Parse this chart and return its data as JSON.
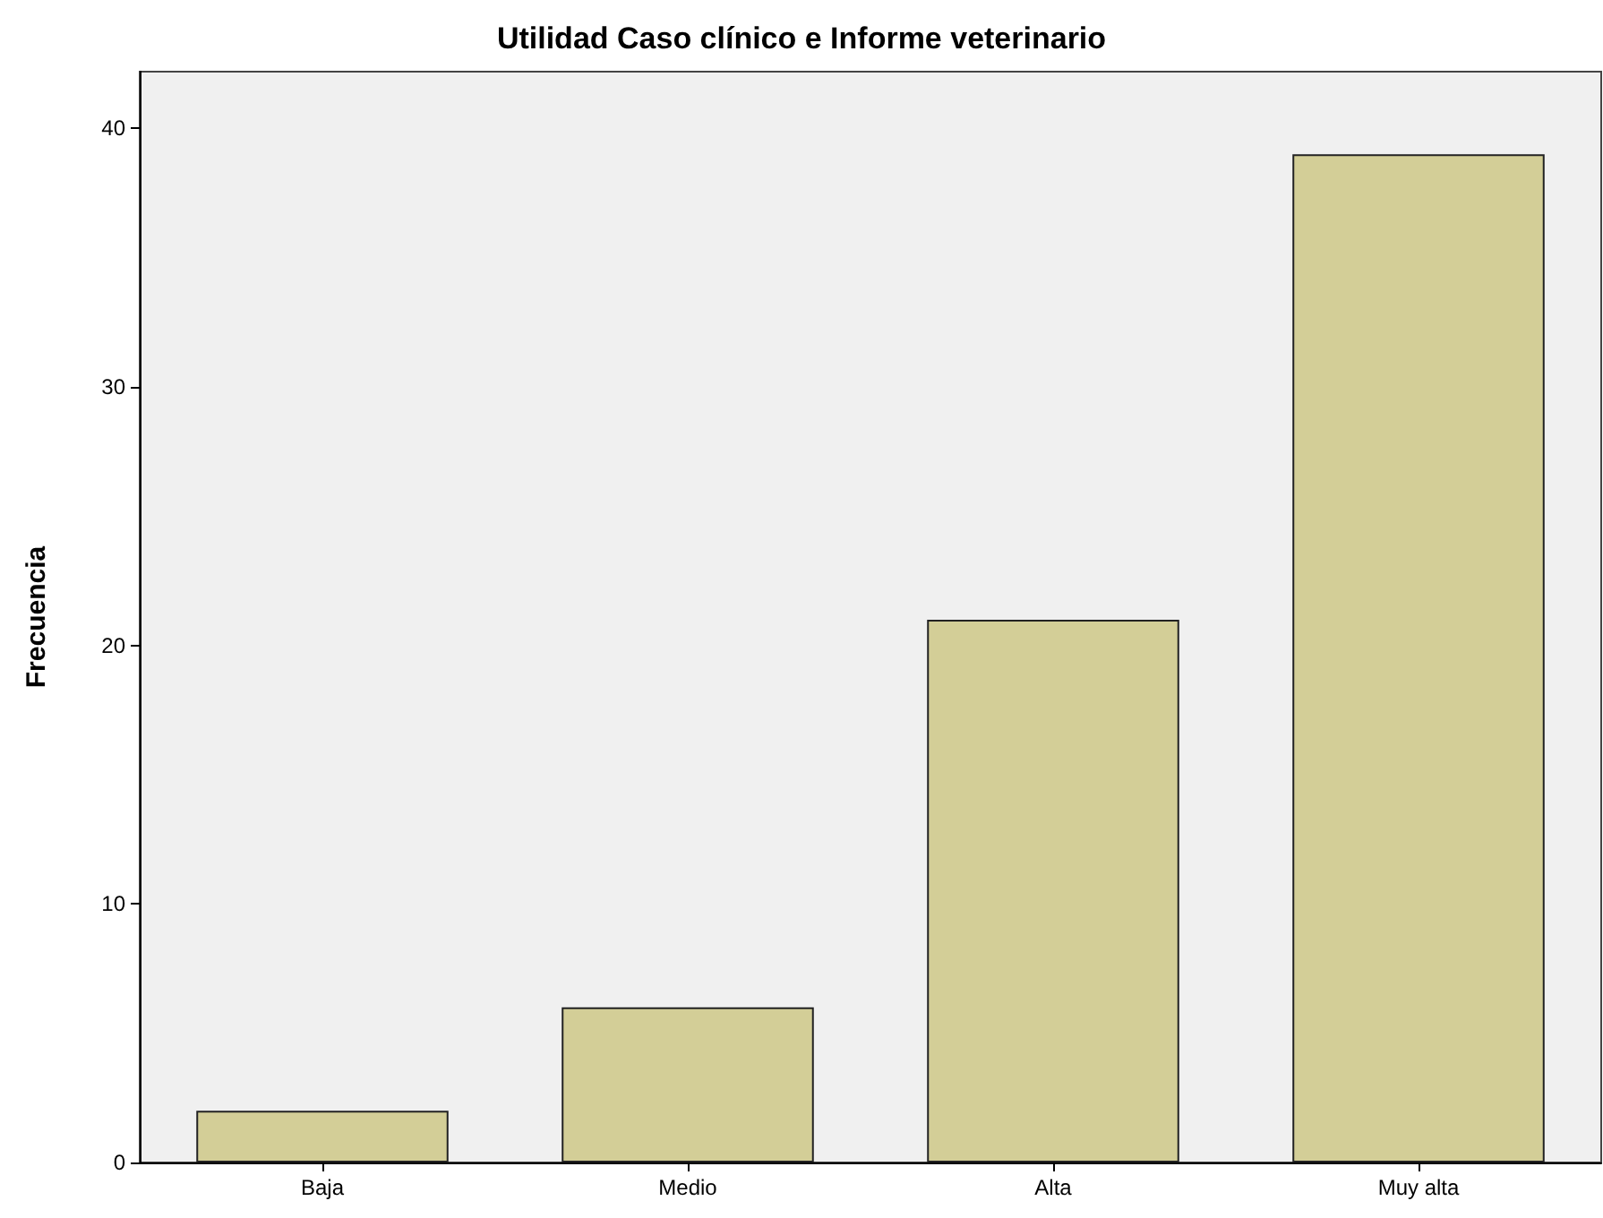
{
  "chart_data": {
    "type": "bar",
    "title": "Utilidad Caso clínico e Informe veterinario",
    "ylabel": "Frecuencia",
    "categories": [
      "Baja",
      "Medio",
      "Alta",
      "Muy alta"
    ],
    "values": [
      2,
      6,
      21,
      39
    ],
    "color": "#d3ce97",
    "ylim": [
      0,
      42.2
    ],
    "yticks": [
      0,
      10,
      20,
      30,
      40
    ],
    "grid": false
  }
}
